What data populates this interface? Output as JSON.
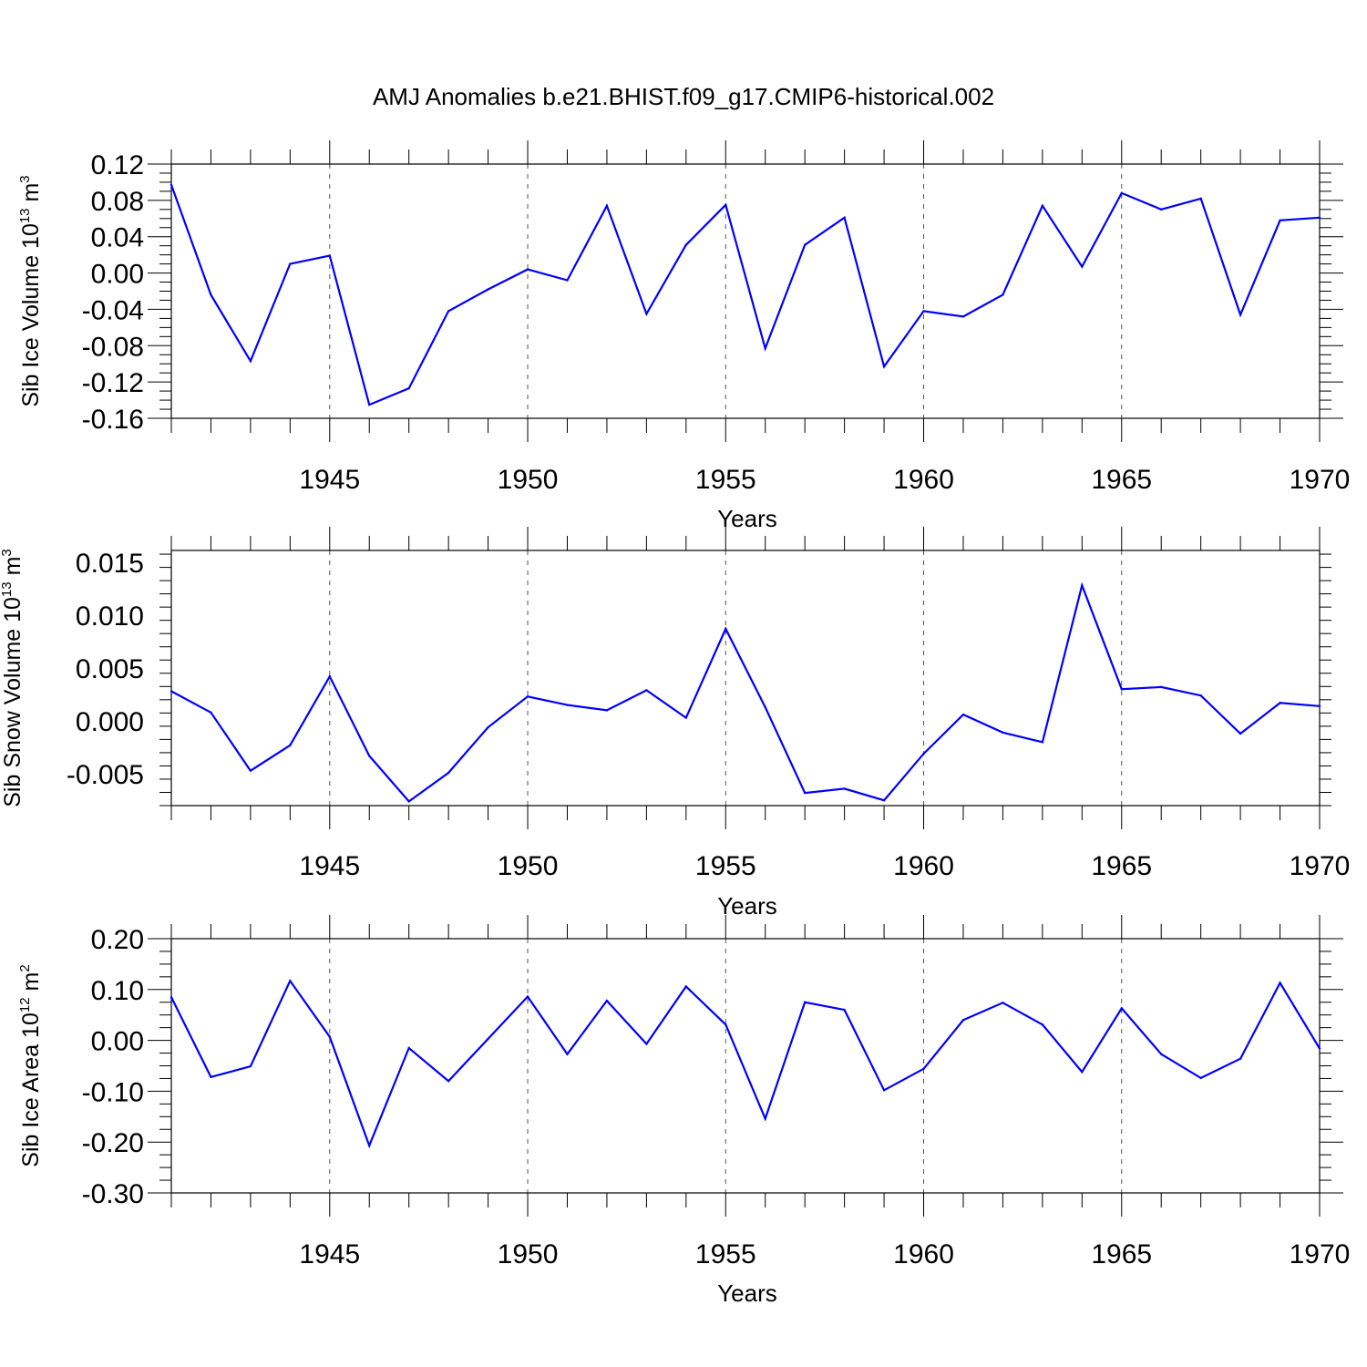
{
  "title": "AMJ Anomalies b.e21.BHIST.f09_g17.CMIP6-historical.002",
  "colors": {
    "line": "#0000ff",
    "axis": "#000000",
    "gridline": "#555555"
  },
  "chart_data": [
    {
      "type": "line",
      "ylabel_main": "Sib Ice Volume 10",
      "ylabel_exp": "13",
      "ylabel_unit": " m",
      "ylabel_unit_exp": "3",
      "xlabel": "Years",
      "xlim": [
        1941,
        1970
      ],
      "ylim": [
        -0.16,
        0.12
      ],
      "yticks": [
        "0.12",
        "0.08",
        "0.04",
        "0.00",
        "-0.04",
        "-0.08",
        "-0.12",
        "-0.16"
      ],
      "xticks": [
        "1945",
        "1950",
        "1955",
        "1960",
        "1965",
        "1970"
      ],
      "x": [
        1941,
        1942,
        1943,
        1944,
        1945,
        1946,
        1947,
        1948,
        1949,
        1950,
        1951,
        1952,
        1953,
        1954,
        1955,
        1956,
        1957,
        1958,
        1959,
        1960,
        1961,
        1962,
        1963,
        1964,
        1965,
        1966,
        1967,
        1968,
        1969,
        1970
      ],
      "values": [
        0.097,
        -0.024,
        -0.097,
        0.01,
        0.019,
        -0.145,
        -0.127,
        -0.042,
        -0.018,
        0.004,
        -0.008,
        0.074,
        -0.045,
        0.031,
        0.075,
        -0.083,
        0.031,
        0.061,
        -0.103,
        -0.042,
        -0.048,
        -0.024,
        0.074,
        0.007,
        0.088,
        0.07,
        0.082,
        -0.046,
        0.058,
        0.061
      ]
    },
    {
      "type": "line",
      "ylabel_main": "Sib Snow Volume 10",
      "ylabel_exp": "13",
      "ylabel_unit": " m",
      "ylabel_unit_exp": "3",
      "xlabel": "Years",
      "xlim": [
        1941,
        1970
      ],
      "ylim": [
        -0.008,
        0.0161
      ],
      "yticks": [
        "0.015",
        "0.010",
        "0.005",
        "0.000",
        "-0.005"
      ],
      "xticks": [
        "1945",
        "1950",
        "1955",
        "1960",
        "1965",
        "1970"
      ],
      "x": [
        1941,
        1942,
        1943,
        1944,
        1945,
        1946,
        1947,
        1948,
        1949,
        1950,
        1951,
        1952,
        1953,
        1954,
        1955,
        1956,
        1957,
        1958,
        1959,
        1960,
        1961,
        1962,
        1963,
        1964,
        1965,
        1966,
        1967,
        1968,
        1969,
        1970
      ],
      "values": [
        0.0028,
        0.0008,
        -0.0047,
        -0.0023,
        0.0042,
        -0.0033,
        -0.0076,
        -0.0049,
        -0.0006,
        0.0023,
        0.0015,
        0.001,
        0.0029,
        0.0003,
        0.0087,
        0.0013,
        -0.0068,
        -0.0064,
        -0.0075,
        -0.0031,
        0.0006,
        -0.0011,
        -0.002,
        0.0128,
        0.003,
        0.0032,
        0.0024,
        -0.0012,
        0.0017,
        0.0014
      ]
    },
    {
      "type": "line",
      "ylabel_main": "Sib Ice Area 10",
      "ylabel_exp": "12",
      "ylabel_unit": " m",
      "ylabel_unit_exp": "2",
      "xlabel": "Years",
      "xlim": [
        1941,
        1970
      ],
      "ylim": [
        -0.3,
        0.2
      ],
      "yticks": [
        "0.20",
        "0.10",
        "0.00",
        "-0.10",
        "-0.20",
        "-0.30"
      ],
      "xticks": [
        "1945",
        "1950",
        "1955",
        "1960",
        "1965",
        "1970"
      ],
      "x": [
        1941,
        1942,
        1943,
        1944,
        1945,
        1946,
        1947,
        1948,
        1949,
        1950,
        1951,
        1952,
        1953,
        1954,
        1955,
        1956,
        1957,
        1958,
        1959,
        1960,
        1961,
        1962,
        1963,
        1964,
        1965,
        1966,
        1967,
        1968,
        1969,
        1970
      ],
      "values": [
        0.085,
        -0.072,
        -0.051,
        0.117,
        0.007,
        -0.207,
        -0.015,
        -0.08,
        0.003,
        0.086,
        -0.027,
        0.078,
        -0.007,
        0.106,
        0.031,
        -0.154,
        0.075,
        0.06,
        -0.098,
        -0.056,
        0.04,
        0.074,
        0.031,
        -0.062,
        0.063,
        -0.027,
        -0.074,
        -0.036,
        0.113,
        -0.016
      ]
    }
  ]
}
